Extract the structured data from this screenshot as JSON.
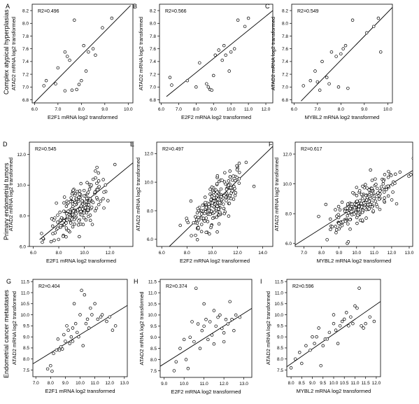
{
  "figure": {
    "rows": [
      "Complex atypical hyperplasias",
      "Primary endometrial tumors",
      "Endometrial cancer metastases"
    ]
  },
  "chart_data": [
    {
      "panel": "A",
      "type": "scatter",
      "r2": "R2=0.496",
      "xlabel": "E2F1 mRNA log2 transformed",
      "ylabel": "ATAD2 mRNA log2 transformed",
      "xlim": [
        5.9,
        10.2
      ],
      "ylim": [
        6.75,
        8.3
      ],
      "xticks": [
        6.0,
        7.0,
        8.0,
        9.0,
        10.0
      ],
      "yticks": [
        6.8,
        7.0,
        7.2,
        7.4,
        7.6,
        7.8,
        8.0,
        8.2
      ],
      "fit": [
        [
          5.9,
          6.72
        ],
        [
          10.1,
          8.28
        ]
      ],
      "points": [
        [
          6.4,
          7.02
        ],
        [
          6.5,
          7.1
        ],
        [
          6.9,
          7.05
        ],
        [
          7.0,
          7.3
        ],
        [
          7.3,
          7.55
        ],
        [
          7.4,
          7.48
        ],
        [
          7.5,
          7.42
        ],
        [
          7.6,
          6.95
        ],
        [
          7.7,
          8.05
        ],
        [
          7.8,
          6.96
        ],
        [
          7.9,
          7.04
        ],
        [
          8.1,
          7.65
        ],
        [
          8.2,
          7.25
        ],
        [
          8.3,
          7.55
        ],
        [
          8.5,
          7.6
        ],
        [
          8.6,
          7.5
        ],
        [
          8.9,
          7.93
        ],
        [
          9.3,
          8.08
        ],
        [
          8.0,
          7.1
        ],
        [
          7.3,
          6.94
        ]
      ]
    },
    {
      "panel": "B",
      "type": "scatter",
      "r2": "R2=0.566",
      "xlabel": "E2F2 mRNA log2 transformed",
      "ylabel": "ATAD2 mRNA log2 transformed",
      "xlim": [
        5.9,
        12.4
      ],
      "ylim": [
        6.75,
        8.3
      ],
      "xticks": [
        6.0,
        7.0,
        8.0,
        9.0,
        10.0,
        11.0,
        12.0
      ],
      "yticks": [
        6.8,
        7.0,
        7.2,
        7.4,
        7.6,
        7.8,
        8.0,
        8.2
      ],
      "fit": [
        [
          6.3,
          6.85
        ],
        [
          12.4,
          8.2
        ]
      ],
      "points": [
        [
          6.5,
          7.15
        ],
        [
          6.6,
          7.03
        ],
        [
          7.5,
          7.1
        ],
        [
          8.0,
          7.0
        ],
        [
          8.2,
          7.38
        ],
        [
          8.6,
          7.05
        ],
        [
          8.8,
          6.96
        ],
        [
          8.9,
          6.95
        ],
        [
          9.0,
          7.18
        ],
        [
          9.1,
          7.5
        ],
        [
          9.3,
          7.58
        ],
        [
          9.5,
          7.42
        ],
        [
          9.6,
          7.65
        ],
        [
          9.7,
          7.5
        ],
        [
          9.9,
          7.25
        ],
        [
          10.0,
          7.55
        ],
        [
          10.2,
          7.6
        ],
        [
          10.4,
          8.05
        ],
        [
          10.8,
          7.95
        ],
        [
          11.0,
          8.08
        ],
        [
          8.7,
          7.0
        ]
      ]
    },
    {
      "panel": "C",
      "type": "scatter",
      "r2": "R2=0.549",
      "xlabel": "MYBL2 mRNA log2 transformed",
      "ylabel": "ATAD2 mRNA log2 transformed",
      "xlim": [
        5.9,
        10.2
      ],
      "ylim": [
        6.75,
        8.3
      ],
      "xticks": [
        6.0,
        7.0,
        8.0,
        9.0,
        10.0
      ],
      "yticks": [
        6.8,
        7.0,
        7.2,
        7.4,
        7.6,
        7.8,
        8.0,
        8.2
      ],
      "fit": [
        [
          6.3,
          6.78
        ],
        [
          10.2,
          8.25
        ]
      ],
      "points": [
        [
          6.4,
          7.02
        ],
        [
          6.7,
          7.1
        ],
        [
          6.9,
          7.25
        ],
        [
          7.0,
          7.08
        ],
        [
          7.2,
          7.4
        ],
        [
          7.4,
          7.15
        ],
        [
          7.5,
          7.05
        ],
        [
          7.6,
          7.55
        ],
        [
          7.8,
          7.48
        ],
        [
          7.9,
          7.0
        ],
        [
          8.1,
          7.6
        ],
        [
          8.2,
          7.65
        ],
        [
          8.3,
          6.98
        ],
        [
          8.5,
          8.05
        ],
        [
          9.1,
          7.85
        ],
        [
          9.4,
          7.95
        ],
        [
          9.6,
          8.08
        ],
        [
          9.7,
          7.55
        ],
        [
          7.1,
          6.95
        ],
        [
          8.0,
          7.52
        ]
      ]
    },
    {
      "panel": "D",
      "type": "scatter",
      "r2": "R2=0.545",
      "xlabel": "E2F1 mRNA log2 transformed",
      "ylabel": "ATAD2 mRNA log2 transformed",
      "xlim": [
        5.7,
        13.8
      ],
      "ylim": [
        6.0,
        12.8
      ],
      "xticks": [
        6.0,
        8.0,
        10.0,
        12.0
      ],
      "yticks": [
        6.0,
        8.0,
        10.0,
        12.0
      ],
      "fit": [
        [
          6.5,
          6.45
        ],
        [
          13.8,
          11.45
        ]
      ],
      "cloud": {
        "n": 210,
        "xm": 9.5,
        "xs": 1.05,
        "slope": 0.72,
        "yc": 8.45,
        "noise": 0.75,
        "seed": 11
      }
    },
    {
      "panel": "E",
      "type": "scatter",
      "r2": "R2=0.497",
      "xlabel": "E2F2 mRNA log2 transformed",
      "ylabel": "ATAD2 mRNA log2 transformed",
      "xlim": [
        5.6,
        14.8
      ],
      "ylim": [
        5.5,
        12.8
      ],
      "xticks": [
        6.0,
        8.0,
        10.0,
        12.0,
        14.0
      ],
      "yticks": [
        6.0,
        8.0,
        10.0,
        12.0
      ],
      "fit": [
        [
          6.6,
          5.5
        ],
        [
          14.8,
          12.5
        ]
      ],
      "cloud": {
        "n": 210,
        "xm": 10.3,
        "xs": 1.05,
        "slope": 0.82,
        "yc": 8.55,
        "noise": 0.72,
        "seed": 23
      }
    },
    {
      "panel": "F",
      "type": "scatter",
      "r2": "R2=0.617",
      "xlabel": "MYBL2 mRNA log2 transformed",
      "ylabel": "ATAD2 mRNA log2 transformed",
      "xlim": [
        6.5,
        13.2
      ],
      "ylim": [
        5.8,
        12.8
      ],
      "xticks": [
        7.0,
        8.0,
        9.0,
        10.0,
        11.0,
        12.0,
        13.0
      ],
      "yticks": [
        6.0,
        8.0,
        10.0,
        12.0
      ],
      "fit": [
        [
          6.5,
          5.9
        ],
        [
          13.2,
          10.9
        ]
      ],
      "cloud": {
        "n": 210,
        "xm": 10.3,
        "xs": 1.05,
        "slope": 0.74,
        "yc": 8.6,
        "noise": 0.62,
        "seed": 37
      }
    },
    {
      "panel": "G",
      "type": "scatter",
      "r2": "R2=0.404",
      "xlabel": "E2F1 mRNA log2 transformed",
      "ylabel": "ATAD2 mRNA log2 transformed",
      "xlim": [
        6.8,
        13.2
      ],
      "ylim": [
        7.2,
        11.6
      ],
      "xticks": [
        7.0,
        8.0,
        9.0,
        10.0,
        11.0,
        12.0,
        13.0
      ],
      "yticks": [
        7.5,
        8.0,
        8.5,
        9.0,
        9.5,
        10.0,
        10.5,
        11.0,
        11.5
      ],
      "fit": [
        [
          6.8,
          7.78
        ],
        [
          13.2,
          10.42
        ]
      ],
      "points": [
        [
          7.8,
          7.55
        ],
        [
          8.0,
          7.7
        ],
        [
          8.1,
          7.45
        ],
        [
          8.2,
          8.25
        ],
        [
          8.4,
          8.4
        ],
        [
          8.5,
          8.9
        ],
        [
          8.6,
          8.4
        ],
        [
          8.7,
          8.55
        ],
        [
          8.8,
          8.45
        ],
        [
          9.0,
          8.8
        ],
        [
          9.1,
          9.5
        ],
        [
          9.2,
          9.3
        ],
        [
          9.3,
          8.7
        ],
        [
          9.4,
          9.0
        ],
        [
          9.5,
          8.8
        ],
        [
          9.5,
          9.4
        ],
        [
          9.6,
          10.5
        ],
        [
          9.7,
          9.6
        ],
        [
          9.8,
          9.2
        ],
        [
          9.9,
          9.0
        ],
        [
          10.0,
          10.0
        ],
        [
          10.1,
          11.1
        ],
        [
          10.2,
          8.6
        ],
        [
          10.3,
          10.9
        ],
        [
          10.4,
          9.6
        ],
        [
          10.5,
          9.8
        ],
        [
          10.6,
          9.4
        ],
        [
          10.8,
          10.0
        ],
        [
          11.0,
          10.5
        ],
        [
          11.2,
          9.8
        ],
        [
          11.4,
          9.9
        ],
        [
          11.8,
          9.7
        ],
        [
          12.0,
          9.9
        ],
        [
          12.2,
          9.3
        ],
        [
          12.4,
          9.5
        ],
        [
          10.7,
          10.3
        ],
        [
          8.9,
          9.1
        ],
        [
          11.5,
          10.0
        ]
      ]
    },
    {
      "panel": "H",
      "type": "scatter",
      "r2": "R2=0.374",
      "xlabel": "E2F2 mRNA log2 transformed",
      "ylabel": "ATAD2 mRNA log2 transformed",
      "xlim": [
        8.8,
        13.4
      ],
      "ylim": [
        7.2,
        11.6
      ],
      "xticks": [
        9.0,
        10.0,
        11.0,
        12.0,
        13.0
      ],
      "yticks": [
        7.5,
        8.0,
        8.5,
        9.0,
        9.5,
        10.0,
        10.5,
        11.0,
        11.5
      ],
      "fit": [
        [
          8.8,
          7.7
        ],
        [
          13.4,
          10.3
        ]
      ],
      "points": [
        [
          9.5,
          7.5
        ],
        [
          9.6,
          7.9
        ],
        [
          9.8,
          8.5
        ],
        [
          10.0,
          8.9
        ],
        [
          10.1,
          8.0
        ],
        [
          10.2,
          7.6
        ],
        [
          10.3,
          9.0
        ],
        [
          10.5,
          8.8
        ],
        [
          10.6,
          11.2
        ],
        [
          10.7,
          9.6
        ],
        [
          10.8,
          8.5
        ],
        [
          10.9,
          9.3
        ],
        [
          11.0,
          9.5
        ],
        [
          11.1,
          9.8
        ],
        [
          11.2,
          8.9
        ],
        [
          11.3,
          9.7
        ],
        [
          11.4,
          9.1
        ],
        [
          11.5,
          10.2
        ],
        [
          11.6,
          9.5
        ],
        [
          11.7,
          9.9
        ],
        [
          11.8,
          10.0
        ],
        [
          11.9,
          9.4
        ],
        [
          12.0,
          9.2
        ],
        [
          12.1,
          9.8
        ],
        [
          12.2,
          9.6
        ],
        [
          12.3,
          10.6
        ],
        [
          12.4,
          9.8
        ],
        [
          12.6,
          10.0
        ],
        [
          12.8,
          9.9
        ],
        [
          11.5,
          8.7
        ],
        [
          12.0,
          8.8
        ],
        [
          10.4,
          9.7
        ],
        [
          11.0,
          10.5
        ],
        [
          12.5,
          9.3
        ]
      ]
    },
    {
      "panel": "I",
      "type": "scatter",
      "r2": "R2=0.596",
      "xlabel": "MYBL2 mRNA log2 transformed",
      "ylabel": "ATAD2 mRNA log2 transformed",
      "xlim": [
        7.8,
        12.2
      ],
      "ylim": [
        7.2,
        11.6
      ],
      "xticks": [
        8.0,
        8.5,
        9.0,
        9.5,
        10.0,
        10.5,
        11.0,
        11.5,
        12.0
      ],
      "yticks": [
        7.5,
        8.0,
        8.5,
        9.0,
        9.5,
        10.0,
        10.5,
        11.0,
        11.5
      ],
      "fit": [
        [
          7.8,
          7.65
        ],
        [
          12.2,
          10.6
        ]
      ],
      "points": [
        [
          8.0,
          7.6
        ],
        [
          8.2,
          8.0
        ],
        [
          8.4,
          8.3
        ],
        [
          8.5,
          7.8
        ],
        [
          8.7,
          8.6
        ],
        [
          8.9,
          8.4
        ],
        [
          9.0,
          9.0
        ],
        [
          9.1,
          8.7
        ],
        [
          9.2,
          9.0
        ],
        [
          9.4,
          7.7
        ],
        [
          9.5,
          8.6
        ],
        [
          9.6,
          8.9
        ],
        [
          9.7,
          8.9
        ],
        [
          9.8,
          9.2
        ],
        [
          10.0,
          10.0
        ],
        [
          10.1,
          9.3
        ],
        [
          10.2,
          8.7
        ],
        [
          10.3,
          9.5
        ],
        [
          10.4,
          9.7
        ],
        [
          10.5,
          9.8
        ],
        [
          10.6,
          10.1
        ],
        [
          10.7,
          9.5
        ],
        [
          10.8,
          9.9
        ],
        [
          10.9,
          9.6
        ],
        [
          11.0,
          10.4
        ],
        [
          11.1,
          10.3
        ],
        [
          11.2,
          11.2
        ],
        [
          11.3,
          9.5
        ],
        [
          11.4,
          9.4
        ],
        [
          11.5,
          9.6
        ],
        [
          11.7,
          9.9
        ],
        [
          11.9,
          9.7
        ],
        [
          9.3,
          9.4
        ],
        [
          10.0,
          9.6
        ]
      ]
    }
  ]
}
